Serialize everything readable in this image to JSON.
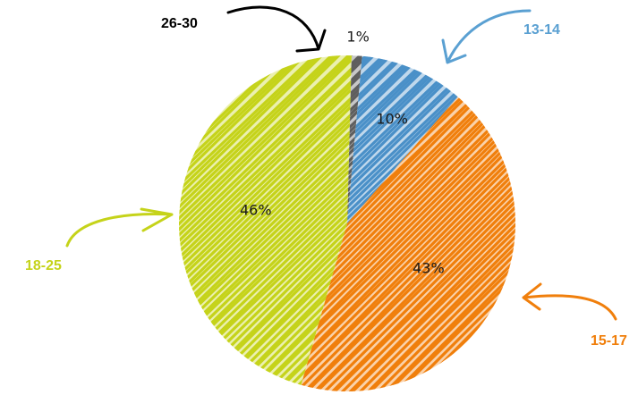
{
  "chart_data": {
    "type": "pie",
    "title": "",
    "style": "hand-drawn hatched slices with arrow annotations",
    "slices": [
      {
        "label": "26-30",
        "value": 1,
        "value_label": "1%",
        "color": "#5e5e5e",
        "label_color": "#000000"
      },
      {
        "label": "13-14",
        "value": 10,
        "value_label": "10%",
        "color": "#4a90c8",
        "label_color": "#5aa0d2"
      },
      {
        "label": "15-17",
        "value": 43,
        "value_label": "43%",
        "color": "#f07f0c",
        "label_color": "#f07f0c"
      },
      {
        "label": "18-25",
        "value": 46,
        "value_label": "46%",
        "color": "#c5d31a",
        "label_color": "#c5d31a"
      }
    ]
  }
}
